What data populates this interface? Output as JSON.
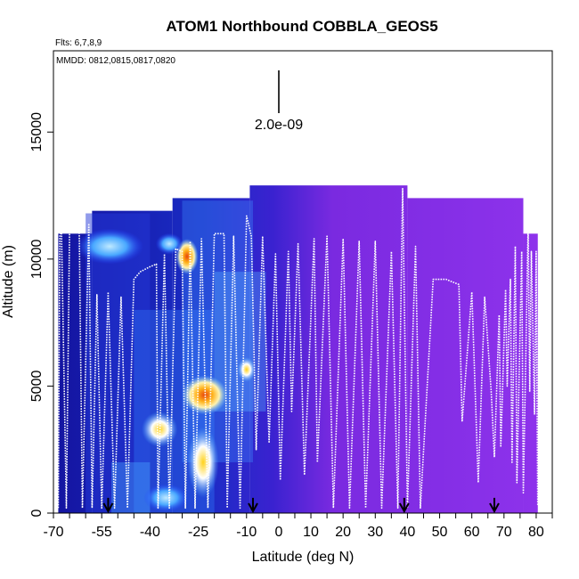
{
  "chart_data": {
    "type": "heatmap",
    "title": "ATOM1 Northbound COBBLA_GEOS5",
    "subtitle": "Flts: 6,7,8,9",
    "annotation": "MMDD: 0812,0815,0817,0820",
    "scale_label": "2.0e-09",
    "xlabel": "Latitude (deg N)",
    "ylabel": "Altitude (m)",
    "xlim": [
      -70,
      85
    ],
    "ylim": [
      0,
      18200
    ],
    "x_ticks": [
      -70,
      -55,
      -40,
      -25,
      -10,
      0,
      10,
      20,
      30,
      40,
      50,
      60,
      70,
      80
    ],
    "y_ticks": [
      0,
      5000,
      10000,
      15000
    ],
    "colors": {
      "background_low": "#1a1aa8",
      "background_high": "#8a2be2",
      "hot": "#e8440a",
      "warm": "#ffd21a",
      "cool": "#7fd0ff",
      "flight_track": "#ffffff"
    },
    "column_tops": [
      {
        "x0": -68.5,
        "x1": -58,
        "alt": 11000
      },
      {
        "x0": -58,
        "x1": -33,
        "alt": 11900
      },
      {
        "x0": -33,
        "x1": -9,
        "alt": 12400
      },
      {
        "x0": -9,
        "x1": 40,
        "alt": 12900
      },
      {
        "x0": 40,
        "x1": 76,
        "alt": 12400
      },
      {
        "x0": 76,
        "x1": 80.5,
        "alt": 11000
      }
    ],
    "hotspots": [
      {
        "x0": -31,
        "x1": -26,
        "y0": 9600,
        "y1": 10600,
        "level": 0.9
      },
      {
        "x0": -41,
        "x1": -33,
        "y0": 2800,
        "y1": 3800,
        "level": 0.65
      },
      {
        "x0": -28,
        "x1": -18,
        "y0": 4100,
        "y1": 5200,
        "level": 0.85
      },
      {
        "x0": -27,
        "x1": -20,
        "y0": 1000,
        "y1": 3000,
        "level": 0.75
      },
      {
        "x0": -12,
        "x1": -8,
        "y0": 5300,
        "y1": 6000,
        "level": 0.7
      },
      {
        "x0": -37,
        "x1": -31,
        "y0": 10300,
        "y1": 10900,
        "level": 0.5
      },
      {
        "x0": -60,
        "x1": -45,
        "y0": 10000,
        "y1": 11000,
        "level": 0.35
      },
      {
        "x0": -40,
        "x1": -30,
        "y0": 200,
        "y1": 1000,
        "level": 0.35
      }
    ],
    "flight_track": [
      [
        -68.5,
        200
      ],
      [
        -68,
        10900
      ],
      [
        -67.5,
        11100
      ],
      [
        -66,
        200
      ],
      [
        -65,
        11200
      ],
      [
        -62,
        11300
      ],
      [
        -61,
        200
      ],
      [
        -59,
        11400
      ],
      [
        -58,
        200
      ],
      [
        -56.5,
        8600
      ],
      [
        -55,
        200
      ],
      [
        -53,
        8700
      ],
      [
        -51,
        200
      ],
      [
        -49,
        8500
      ],
      [
        -47,
        200
      ],
      [
        -45,
        9200
      ],
      [
        -43,
        9500
      ],
      [
        -40,
        9700
      ],
      [
        -38,
        9800
      ],
      [
        -37.5,
        200
      ],
      [
        -35.5,
        10200
      ],
      [
        -34,
        200
      ],
      [
        -32,
        10400
      ],
      [
        -30,
        10300
      ],
      [
        -29,
        200
      ],
      [
        -27.5,
        10700
      ],
      [
        -26,
        200
      ],
      [
        -24,
        10800
      ],
      [
        -22,
        200
      ],
      [
        -20,
        11000
      ],
      [
        -17,
        11000
      ],
      [
        -16,
        200
      ],
      [
        -14,
        10900
      ],
      [
        -12,
        200
      ],
      [
        -10,
        11700
      ],
      [
        -8.5,
        10900
      ],
      [
        -7,
        2500
      ],
      [
        -5,
        10900
      ],
      [
        -3,
        2800
      ],
      [
        -1,
        10200
      ],
      [
        0.5,
        1300
      ],
      [
        3,
        10300
      ],
      [
        4,
        4000
      ],
      [
        6,
        10600
      ],
      [
        8,
        1500
      ],
      [
        11,
        10800
      ],
      [
        12,
        2000
      ],
      [
        15,
        10900
      ],
      [
        17,
        200
      ],
      [
        20,
        10800
      ],
      [
        22,
        200
      ],
      [
        25,
        10700
      ],
      [
        27,
        200
      ],
      [
        30,
        10700
      ],
      [
        32,
        200
      ],
      [
        35,
        10300
      ],
      [
        37,
        200
      ],
      [
        38.5,
        12800
      ],
      [
        40,
        200
      ],
      [
        42.5,
        10500
      ],
      [
        44,
        200
      ],
      [
        48,
        9200
      ],
      [
        52,
        9200
      ],
      [
        56,
        9000
      ],
      [
        57,
        3600
      ],
      [
        60,
        8700
      ],
      [
        62,
        1200
      ],
      [
        64,
        8500
      ],
      [
        66,
        4800
      ],
      [
        67,
        2200
      ],
      [
        68.5,
        7800
      ],
      [
        69,
        2600
      ],
      [
        70.5,
        8800
      ],
      [
        71,
        5000
      ],
      [
        72,
        9200
      ],
      [
        72.5,
        2000
      ],
      [
        73.5,
        10500
      ],
      [
        74,
        1200
      ],
      [
        75.5,
        10300
      ],
      [
        76,
        800
      ],
      [
        77.5,
        11300
      ],
      [
        78,
        4800
      ],
      [
        78.5,
        10300
      ],
      [
        79.5,
        3900
      ],
      [
        80,
        10300
      ],
      [
        80.5,
        300
      ]
    ],
    "arrows_x": [
      -53,
      -8,
      39,
      67
    ]
  }
}
